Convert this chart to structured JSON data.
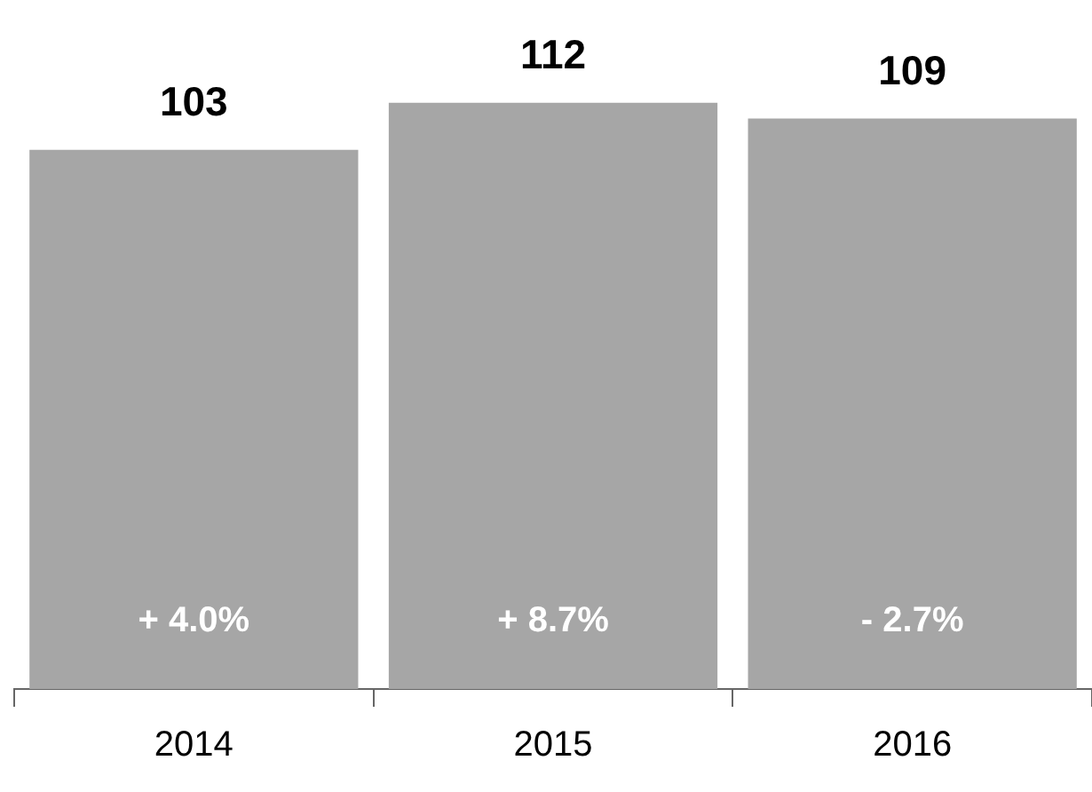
{
  "chart_data": {
    "type": "bar",
    "categories": [
      "2014",
      "2015",
      "2016"
    ],
    "values": [
      103,
      112,
      109
    ],
    "color": "#a6a6a6",
    "data_labels": true,
    "legend": false,
    "grid": false,
    "tick_labels": "x",
    "annotations": [
      "+ 4.0%",
      "+ 8.7%",
      "- 2.7%"
    ]
  }
}
